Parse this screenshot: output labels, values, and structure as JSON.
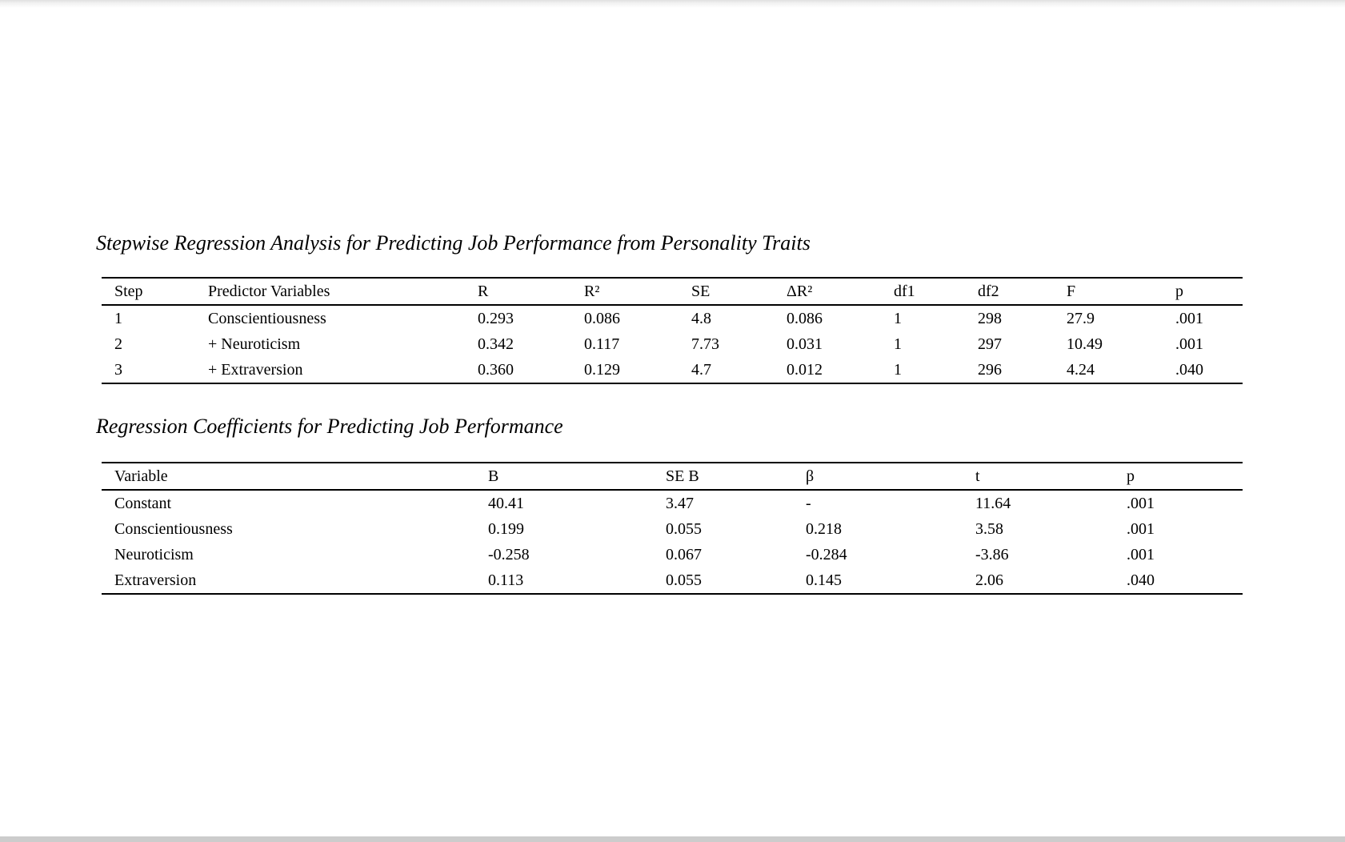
{
  "document": {
    "tables": [
      {
        "title": "Stepwise Regression Analysis for Predicting Job Performance from Personality Traits",
        "columns": [
          "Step",
          "Predictor Variables",
          "R",
          "R²",
          "SE",
          "ΔR²",
          "df1",
          "df2",
          "F",
          "p"
        ],
        "rows": [
          [
            "1",
            "Conscientiousness",
            "0.293",
            "0.086",
            "4.8",
            "0.086",
            "1",
            "298",
            "27.9",
            ".001"
          ],
          [
            "2",
            "+ Neuroticism",
            "0.342",
            "0.117",
            "7.73",
            "0.031",
            "1",
            "297",
            "10.49",
            ".001"
          ],
          [
            "3",
            "+ Extraversion",
            "0.360",
            "0.129",
            "4.7",
            "0.012",
            "1",
            "296",
            "4.24",
            ".040"
          ]
        ]
      },
      {
        "title": "Regression Coefficients for Predicting Job Performance",
        "columns": [
          "Variable",
          "B",
          "SE B",
          "β",
          "t",
          "p"
        ],
        "rows": [
          [
            "Constant",
            "40.41",
            "3.47",
            "-",
            "11.64",
            ".001"
          ],
          [
            "Conscientiousness",
            "0.199",
            "0.055",
            "0.218",
            "3.58",
            ".001"
          ],
          [
            "Neuroticism",
            "-0.258",
            "0.067",
            "-0.284",
            "-3.86",
            ".001"
          ],
          [
            "Extraversion",
            "0.113",
            "0.055",
            "0.145",
            "2.06",
            ".040"
          ]
        ]
      }
    ]
  }
}
